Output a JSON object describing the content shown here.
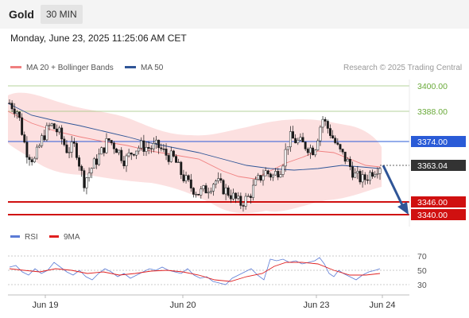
{
  "header": {
    "symbol": "Gold",
    "timeframe": "30 MIN"
  },
  "datetime": "Monday, June 23, 2025 11:25:06 AM CET",
  "legend": {
    "bollinger": {
      "label": "MA 20 + Bollinger Bands",
      "color": "#f08080"
    },
    "ma50": {
      "label": "MA 50",
      "color": "#2f5597"
    },
    "rsi": {
      "label": "RSI",
      "color": "#5b7bd5"
    },
    "rsi_ma": {
      "label": "9MA",
      "color": "#e02020"
    }
  },
  "research_note": "Research © 2025 Trading Central",
  "price_labels": {
    "l3400": "3400.00",
    "l3388": "3388.00",
    "l3374": "3374.00",
    "current": "3363.04",
    "l3346": "3346.00",
    "l3340": "3340.00"
  },
  "rsi_axis": {
    "t70": "70",
    "t50": "50",
    "t30": "30"
  },
  "x_axis": {
    "jun19": "Jun 19",
    "jun20": "Jun 20",
    "jun23": "Jun 23",
    "jun24": "Jun 24"
  },
  "chart_data": {
    "type": "candlestick",
    "instrument": "Gold",
    "interval": "30 MIN",
    "x_ticks": [
      "Jun 19",
      "Jun 20",
      "Jun 23",
      "Jun 24"
    ],
    "levels": [
      {
        "value": 3400.0,
        "style": "resistance",
        "color": "#9cc47a"
      },
      {
        "value": 3388.0,
        "style": "resistance",
        "color": "#9cc47a"
      },
      {
        "value": 3374.0,
        "style": "pivot",
        "color": "#2a5bd7"
      },
      {
        "value": 3346.0,
        "style": "support",
        "color": "#d01010"
      },
      {
        "value": 3340.0,
        "style": "support",
        "color": "#d01010"
      }
    ],
    "last_price": 3363.04,
    "forecast_target": 3340.0,
    "price_path": [
      3392,
      3388,
      3370,
      3365,
      3376,
      3382,
      3378,
      3370,
      3372,
      3355,
      3362,
      3368,
      3375,
      3371,
      3365,
      3370,
      3372,
      3371,
      3372,
      3368,
      3366,
      3358,
      3353,
      3350,
      3352,
      3356,
      3352,
      3349,
      3345,
      3348,
      3355,
      3360,
      3358,
      3362,
      3376,
      3374,
      3372,
      3370,
      3385,
      3378,
      3370,
      3365,
      3358,
      3356,
      3360,
      3363
    ],
    "rsi": {
      "ticks": [
        70,
        50,
        30
      ],
      "last": 53
    }
  }
}
